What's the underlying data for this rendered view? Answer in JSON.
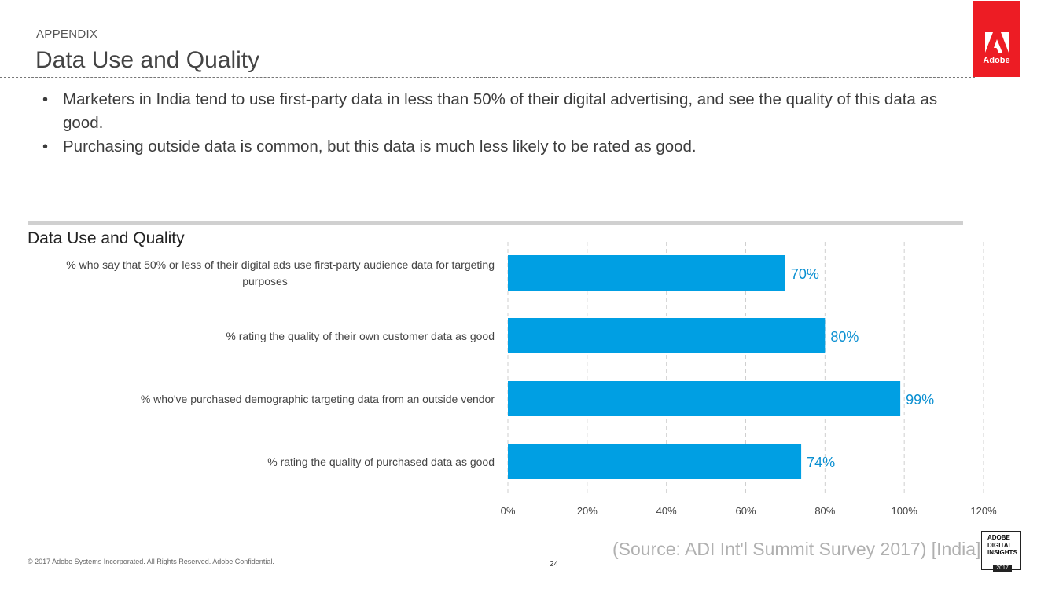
{
  "header": {
    "section_label": "APPENDIX",
    "title": "Data Use and Quality",
    "logo_text": "Adobe"
  },
  "bullets": [
    "Marketers in India tend to use first-party data in less than 50% of their digital advertising, and see the quality of this data as good.",
    "Purchasing outside data is common, but this data is much less likely to be rated as good."
  ],
  "colors": {
    "bar": "#009fe3",
    "value_label": "#0a8fd1",
    "brand": "#ed1c24"
  },
  "chart_data": {
    "type": "bar",
    "orientation": "horizontal",
    "title": "Data Use and Quality",
    "categories": [
      "% who say that 50% or less of their digital ads use first-party audience data for targeting purposes",
      "% rating the quality of their own customer data as good",
      "% who've purchased demographic targeting data from an outside vendor",
      "% rating the quality of purchased data as good"
    ],
    "category_lines": [
      [
        "% who say that 50% or less of their digital ads use first-party audience data for targeting",
        "purposes"
      ],
      [
        "% rating the quality of their own customer data as good"
      ],
      [
        "% who've purchased demographic targeting data from an outside vendor"
      ],
      [
        "% rating the quality of purchased data as good"
      ]
    ],
    "values": [
      70,
      80,
      99,
      74
    ],
    "value_labels": [
      "70%",
      "80%",
      "99%",
      "74%"
    ],
    "xlim": [
      0,
      120
    ],
    "ticks": [
      0,
      20,
      40,
      60,
      80,
      100,
      120
    ],
    "tick_labels": [
      "0%",
      "20%",
      "40%",
      "60%",
      "80%",
      "100%",
      "120%"
    ],
    "grid": true,
    "grid_style": "dashed vertical",
    "legend": "none"
  },
  "footer": {
    "copyright": "© 2017 Adobe Systems Incorporated.  All Rights Reserved.  Adobe Confidential.",
    "page_number": "24",
    "source": "(Source: ADI Int'l Summit Survey 2017) [India]",
    "badge_text": "ADOBE\nDIGITAL\nINSIGHTS",
    "badge_year": "2017"
  }
}
